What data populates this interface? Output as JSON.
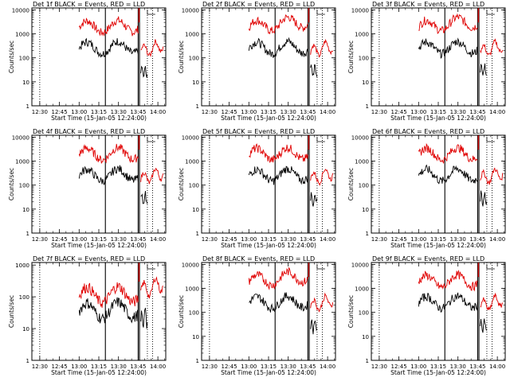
{
  "chart_data": [
    {
      "type": "line",
      "title": "Det 1f BLACK = Events, RED = LLD",
      "xlabel": "Start Time (15-Jan-05 12:24:00)",
      "ylabel": "Counts/sec",
      "xtick_labels": [
        "12:30",
        "12:45",
        "13:00",
        "13:15",
        "13:30",
        "13:45",
        "14:00"
      ],
      "ytick_labels": [
        "1",
        "10",
        "100",
        "1000",
        "10000"
      ],
      "yscale": "log",
      "ylim": [
        1,
        12000
      ],
      "xlim": [
        "12:24",
        "14:06"
      ],
      "series": [
        {
          "color": "#000000",
          "shape": "flat"
        },
        {
          "color": "#e00000",
          "shape": "flat"
        }
      ]
    },
    {
      "type": "line",
      "title": "Det 2f BLACK = Events, RED = LLD",
      "xlabel": "Start Time (15-Jan-05 12:24:00)",
      "ylabel": "Counts/sec",
      "xtick_labels": [
        "12:30",
        "12:45",
        "13:00",
        "13:15",
        "13:30",
        "13:45",
        "14:00"
      ],
      "ytick_labels": [
        "1",
        "10",
        "100",
        "1000",
        "10000"
      ],
      "yscale": "log",
      "ylim": [
        1,
        12000
      ],
      "xlim": [
        "12:24",
        "14:06"
      ],
      "series": [
        {
          "color": "#000000",
          "shape": "flat"
        },
        {
          "color": "#e00000",
          "shape": "rise"
        }
      ]
    },
    {
      "type": "line",
      "title": "Det 3f BLACK = Events, RED = LLD",
      "xlabel": "Start Time (15-Jan-05 12:24:00)",
      "ylabel": "Counts/sec",
      "xtick_labels": [
        "12:30",
        "12:45",
        "13:00",
        "13:15",
        "13:30",
        "13:45",
        "14:00"
      ],
      "ytick_labels": [
        "1",
        "10",
        "100",
        "1000",
        "10000"
      ],
      "yscale": "log",
      "ylim": [
        1,
        12000
      ],
      "xlim": [
        "12:24",
        "14:06"
      ],
      "series": [
        {
          "color": "#000000",
          "shape": "flat"
        },
        {
          "color": "#e00000",
          "shape": "rise"
        }
      ]
    },
    {
      "type": "line",
      "title": "Det 4f BLACK = Events, RED = LLD",
      "xlabel": "Start Time (15-Jan-05 12:24:00)",
      "ylabel": "Counts/sec",
      "xtick_labels": [
        "12:30",
        "12:45",
        "13:00",
        "13:15",
        "13:30",
        "13:45",
        "14:00"
      ],
      "ytick_labels": [
        "1",
        "10",
        "100",
        "1000",
        "10000"
      ],
      "yscale": "log",
      "ylim": [
        1,
        12000
      ],
      "xlim": [
        "12:24",
        "14:06"
      ],
      "series": [
        {
          "color": "#000000",
          "shape": "flat"
        },
        {
          "color": "#e00000",
          "shape": "flat"
        }
      ]
    },
    {
      "type": "line",
      "title": "Det 5f BLACK = Events, RED = LLD",
      "xlabel": "Start Time (15-Jan-05 12:24:00)",
      "ylabel": "Counts/sec",
      "xtick_labels": [
        "12:30",
        "12:45",
        "13:00",
        "13:15",
        "13:30",
        "13:45",
        "14:00"
      ],
      "ytick_labels": [
        "1",
        "10",
        "100",
        "1000",
        "10000"
      ],
      "yscale": "log",
      "ylim": [
        1,
        12000
      ],
      "xlim": [
        "12:24",
        "14:06"
      ],
      "series": [
        {
          "color": "#000000",
          "shape": "flat"
        },
        {
          "color": "#e00000",
          "shape": "flat"
        }
      ]
    },
    {
      "type": "line",
      "title": "Det 6f BLACK = Events, RED = LLD",
      "xlabel": "Start Time (15-Jan-05 12:24:00)",
      "ylabel": "Counts/sec",
      "xtick_labels": [
        "12:30",
        "12:45",
        "13:00",
        "13:15",
        "13:30",
        "13:45",
        "14:00"
      ],
      "ytick_labels": [
        "1",
        "10",
        "100",
        "1000",
        "10000"
      ],
      "yscale": "log",
      "ylim": [
        1,
        12000
      ],
      "xlim": [
        "12:24",
        "14:06"
      ],
      "series": [
        {
          "color": "#000000",
          "shape": "flat"
        },
        {
          "color": "#e00000",
          "shape": "flat"
        }
      ]
    },
    {
      "type": "line",
      "title": "Det 7f BLACK = Events, RED = LLD",
      "xlabel": "Start Time (15-Jan-05 12:24:00)",
      "ylabel": "Counts/sec",
      "xtick_labels": [
        "12:30",
        "12:45",
        "13:00",
        "13:15",
        "13:30",
        "13:45",
        "14:00"
      ],
      "ytick_labels": [
        "1",
        "10",
        "100",
        "1000"
      ],
      "yscale": "log",
      "ylim": [
        1,
        1200
      ],
      "xlim": [
        "12:24",
        "14:06"
      ],
      "series": [
        {
          "color": "#000000",
          "shape": "flat"
        },
        {
          "color": "#e00000",
          "shape": "flat"
        }
      ]
    },
    {
      "type": "line",
      "title": "Det 8f BLACK = Events, RED = LLD",
      "xlabel": "Start Time (15-Jan-05 12:24:00)",
      "ylabel": "Counts/sec",
      "xtick_labels": [
        "12:30",
        "12:45",
        "13:00",
        "13:15",
        "13:30",
        "13:45",
        "14:00"
      ],
      "ytick_labels": [
        "1",
        "10",
        "100",
        "1000",
        "10000"
      ],
      "yscale": "log",
      "ylim": [
        1,
        12000
      ],
      "xlim": [
        "12:24",
        "14:06"
      ],
      "series": [
        {
          "color": "#000000",
          "shape": "flat"
        },
        {
          "color": "#e00000",
          "shape": "rise"
        }
      ]
    },
    {
      "type": "line",
      "title": "Det 9f BLACK = Events, RED = LLD",
      "xlabel": "Start Time (15-Jan-05 12:24:00)",
      "ylabel": "Counts/sec",
      "xtick_labels": [
        "12:30",
        "12:45",
        "13:00",
        "13:15",
        "13:30",
        "13:45",
        "14:00"
      ],
      "ytick_labels": [
        "1",
        "10",
        "100",
        "1000",
        "10000"
      ],
      "yscale": "log",
      "ylim": [
        1,
        12000
      ],
      "xlim": [
        "12:24",
        "14:06"
      ],
      "series": [
        {
          "color": "#000000",
          "shape": "flat"
        },
        {
          "color": "#e00000",
          "shape": "flat"
        }
      ]
    }
  ]
}
